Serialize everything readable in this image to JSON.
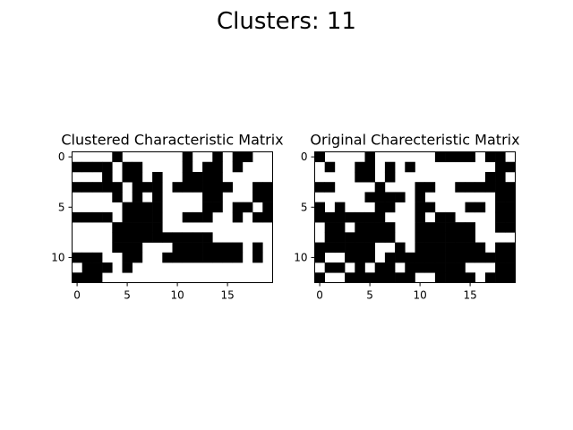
{
  "figure": {
    "suptitle": "Clusters: 11"
  },
  "chart_data": [
    {
      "type": "heatmap",
      "title": "Clustered Characteristic Matrix",
      "colormap": "binary",
      "colors": {
        "one": "#000000",
        "zero": "#ffffff"
      },
      "xticks": [
        0,
        5,
        10,
        15
      ],
      "yticks": [
        0,
        5,
        10
      ],
      "rows": [
        "00001000000100101100",
        "11110110000101101000",
        "00010110100111100000",
        "11111011101111110011",
        "00001010100001100011",
        "00000111100001101101",
        "11110111100111001011",
        "00001111100000000000",
        "00001111111111000000",
        "00001110001111111010",
        "11100110011111111010",
        "01110100000000000000",
        "11100000000000000000"
      ],
      "rows_note": "visible pattern transcribed row-by-row; some cells approximate"
    },
    {
      "type": "heatmap",
      "title": "Original Charecteristic Matrix",
      "colormap": "binary",
      "colors": {
        "one": "#000000",
        "zero": "#ffffff"
      },
      "xticks": [
        0,
        5,
        10,
        15
      ],
      "yticks": [
        0,
        5,
        10
      ],
      "rows": [
        "10000100000011110110",
        "01001101010000000011",
        "00001101000000000110",
        "11000010001100111111",
        "00000111101000000011",
        "10100011001100011011",
        "11111110001011000011",
        "01101111001111110011",
        "01111111001111110000",
        "11111100101111111011",
        "10011101111111111111",
        "01101011011111100011",
        "10011111110011110111"
      ]
    }
  ]
}
